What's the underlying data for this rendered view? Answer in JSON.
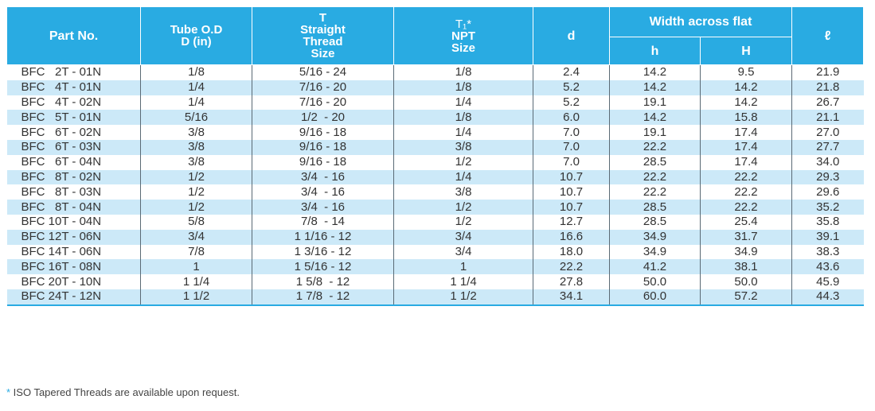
{
  "header": {
    "part_no": "Part No.",
    "tube_od_line1": "Tube O.D",
    "tube_od_line2": "D (in)",
    "t_line1": "T",
    "t_line2": "Straight",
    "t_line3": "Thread",
    "t_line4": "Size",
    "t1_line1": "T₁*",
    "t1_line2": "NPT",
    "t1_line3": "Size",
    "d": "d",
    "width_across_flat": "Width across flat",
    "h_small": "h",
    "h_large": "H",
    "ell": "ℓ"
  },
  "rows": [
    [
      "BFC   2T - 01N",
      "1/8",
      "5/16 - 24",
      "1/8",
      "2.4",
      "14.2",
      "9.5",
      "21.9"
    ],
    [
      "BFC   4T - 01N",
      "1/4",
      "7/16 - 20",
      "1/8",
      "5.2",
      "14.2",
      "14.2",
      "21.8"
    ],
    [
      "BFC   4T - 02N",
      "1/4",
      "7/16 - 20",
      "1/4",
      "5.2",
      "19.1",
      "14.2",
      "26.7"
    ],
    [
      "BFC   5T - 01N",
      "5/16",
      "1/2  - 20",
      "1/8",
      "6.0",
      "14.2",
      "15.8",
      "21.1"
    ],
    [
      "BFC   6T - 02N",
      "3/8",
      "9/16 - 18",
      "1/4",
      "7.0",
      "19.1",
      "17.4",
      "27.0"
    ],
    [
      "BFC   6T - 03N",
      "3/8",
      "9/16 - 18",
      "3/8",
      "7.0",
      "22.2",
      "17.4",
      "27.7"
    ],
    [
      "BFC   6T - 04N",
      "3/8",
      "9/16 - 18",
      "1/2",
      "7.0",
      "28.5",
      "17.4",
      "34.0"
    ],
    [
      "BFC   8T - 02N",
      "1/2",
      "3/4  - 16",
      "1/4",
      "10.7",
      "22.2",
      "22.2",
      "29.3"
    ],
    [
      "BFC   8T - 03N",
      "1/2",
      "3/4  - 16",
      "3/8",
      "10.7",
      "22.2",
      "22.2",
      "29.6"
    ],
    [
      "BFC   8T - 04N",
      "1/2",
      "3/4  - 16",
      "1/2",
      "10.7",
      "28.5",
      "22.2",
      "35.2"
    ],
    [
      "BFC 10T - 04N",
      "5/8",
      "7/8  - 14",
      "1/2",
      "12.7",
      "28.5",
      "25.4",
      "35.8"
    ],
    [
      "BFC 12T - 06N",
      "3/4",
      "1 1/16 - 12",
      "3/4",
      "16.6",
      "34.9",
      "31.7",
      "39.1"
    ],
    [
      "BFC 14T - 06N",
      "7/8",
      "1 3/16 - 12",
      "3/4",
      "18.0",
      "34.9",
      "34.9",
      "38.3"
    ],
    [
      "BFC 16T - 08N",
      "1",
      "1 5/16 - 12",
      "1",
      "22.2",
      "41.2",
      "38.1",
      "43.6"
    ],
    [
      "BFC 20T - 10N",
      "1 1/4",
      "1 5/8  - 12",
      "1 1/4",
      "27.8",
      "50.0",
      "50.0",
      "45.9"
    ],
    [
      "BFC 24T - 12N",
      "1 1/2",
      "1 7/8  - 12",
      "1 1/2",
      "34.1",
      "60.0",
      "57.2",
      "44.3"
    ]
  ],
  "footnote": {
    "asterisk": "*",
    "text": " ISO Tapered Threads are available upon request."
  },
  "colors": {
    "header_bg": "#29abe2",
    "stripe_bg": "#cce9f8"
  }
}
